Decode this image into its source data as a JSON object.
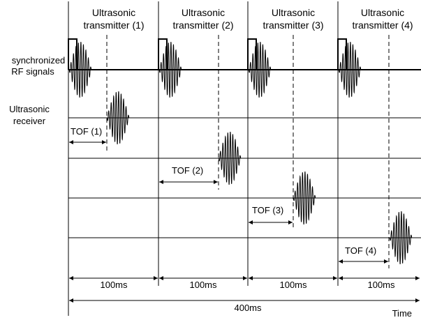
{
  "transmitters": [
    {
      "line1": "Ultrasonic",
      "line2": "transmitter (1)",
      "tof": "TOF (1)",
      "interval": "100ms"
    },
    {
      "line1": "Ultrasonic",
      "line2": "transmitter (2)",
      "tof": "TOF (2)",
      "interval": "100ms"
    },
    {
      "line1": "Ultrasonic",
      "line2": "transmitter (3)",
      "tof": "TOF (3)",
      "interval": "100ms"
    },
    {
      "line1": "Ultrasonic",
      "line2": "transmitter (4)",
      "tof": "TOF (4)",
      "interval": "100ms"
    }
  ],
  "rf_label": {
    "line1": "synchronized",
    "line2": "RF signals"
  },
  "receiver_label": {
    "line1": "Ultrasonic",
    "line2": "receiver"
  },
  "total_period": "400ms",
  "time_label": "Time"
}
